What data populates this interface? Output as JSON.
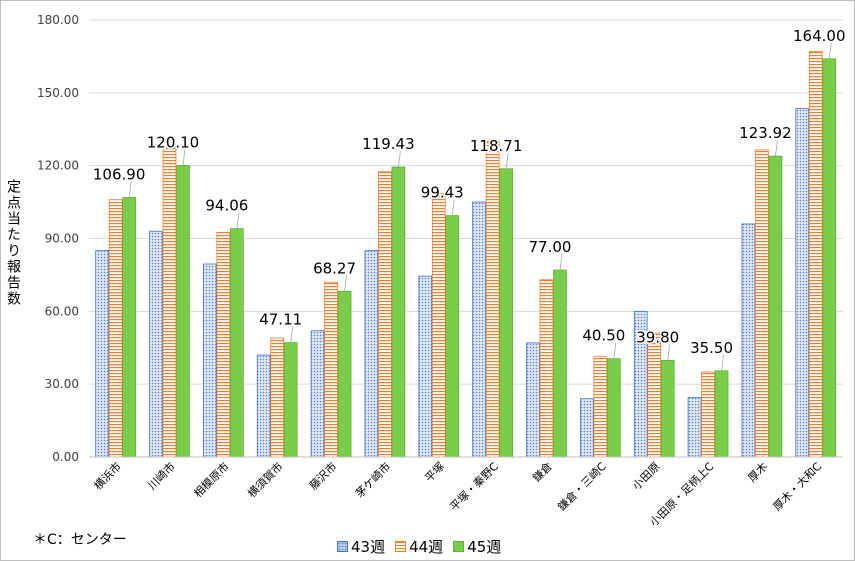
{
  "chart_data": {
    "type": "bar",
    "title": "",
    "xlabel": "",
    "ylabel": "定点当たり報告数",
    "ylim": [
      0,
      180
    ],
    "y_ticks": [
      "0.00",
      "30.00",
      "60.00",
      "90.00",
      "120.00",
      "150.00",
      "180.00"
    ],
    "grid": true,
    "legend_position": "bottom",
    "categories": [
      "横浜市",
      "川崎市",
      "相模原市",
      "横須賀市",
      "藤沢市",
      "茅ケ崎市",
      "平塚",
      "平塚・秦野C",
      "鎌倉",
      "鎌倉・三崎C",
      "小田原",
      "小田原・足柄上C",
      "厚木",
      "厚木・大和C"
    ],
    "series": [
      {
        "name": "43週",
        "color": "#4472c4",
        "values": [
          85,
          93,
          79.5,
          42,
          52,
          85,
          74.5,
          105,
          47,
          24,
          60,
          24.5,
          96,
          143.5
        ]
      },
      {
        "name": "44週",
        "color": "#ed7d31",
        "values": [
          106,
          127.5,
          92.5,
          49,
          72,
          117.5,
          108.5,
          130,
          73,
          41.5,
          51,
          35,
          126.5,
          167
        ]
      },
      {
        "name": "45週",
        "color": "#70c040",
        "values": [
          106.9,
          120.1,
          94.06,
          47.11,
          68.27,
          119.43,
          99.43,
          118.71,
          77.0,
          40.5,
          39.8,
          35.5,
          123.92,
          164.0
        ]
      }
    ],
    "data_labels": [
      "106.90",
      "120.10",
      "94.06",
      "47.11",
      "68.27",
      "119.43",
      "99.43",
      "118.71",
      "77.00",
      "40.50",
      "39.80",
      "35.50",
      "123.92",
      "164.00"
    ],
    "footnote": "＊C：センター"
  }
}
